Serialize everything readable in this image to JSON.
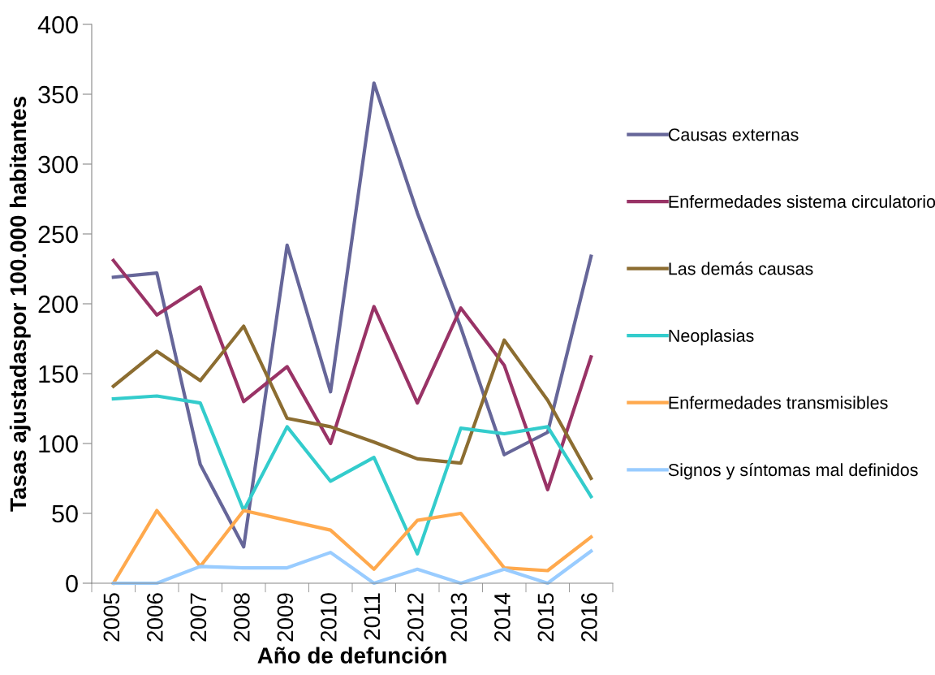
{
  "chart_data": {
    "type": "line",
    "xlabel": "Año de defunción",
    "ylabel": "Tasas ajustadaspor 100.000 habitantes",
    "categories": [
      "2005",
      "2006",
      "2007",
      "2008",
      "2009",
      "2010",
      "2011",
      "2012",
      "2013",
      "2014",
      "2015",
      "2016"
    ],
    "series": [
      {
        "name": "Causas externas",
        "color": "#666699",
        "values": [
          219,
          222,
          85,
          26,
          242,
          137,
          358,
          265,
          183,
          92,
          108,
          234
        ]
      },
      {
        "name": "Enfermedades sistema circulatorio",
        "color": "#993366",
        "values": [
          231,
          192,
          212,
          130,
          155,
          100,
          198,
          129,
          197,
          156,
          67,
          162
        ]
      },
      {
        "name": "Las demás causas",
        "color": "#8c6d31",
        "values": [
          141,
          166,
          145,
          184,
          118,
          112,
          101,
          89,
          86,
          174,
          131,
          75
        ]
      },
      {
        "name": "Neoplasias",
        "color": "#33cccc",
        "values": [
          132,
          134,
          129,
          52,
          112,
          73,
          90,
          21,
          111,
          107,
          112,
          62
        ]
      },
      {
        "name": "Enfermedades transmisibles",
        "color": "#ffa94d",
        "values": [
          0,
          52,
          12,
          52,
          45,
          38,
          10,
          45,
          50,
          11,
          9,
          33
        ]
      },
      {
        "name": "Signos y síntomas mal definidos",
        "color": "#99ccff",
        "values": [
          0,
          0,
          12,
          11,
          11,
          22,
          0,
          10,
          0,
          10,
          0,
          23
        ]
      }
    ],
    "ylim": [
      0,
      400
    ],
    "yticks": [
      0,
      50,
      100,
      150,
      200,
      250,
      300,
      350,
      400
    ],
    "grid": false,
    "legend": "right",
    "marker": "none",
    "line_style": "solid"
  }
}
